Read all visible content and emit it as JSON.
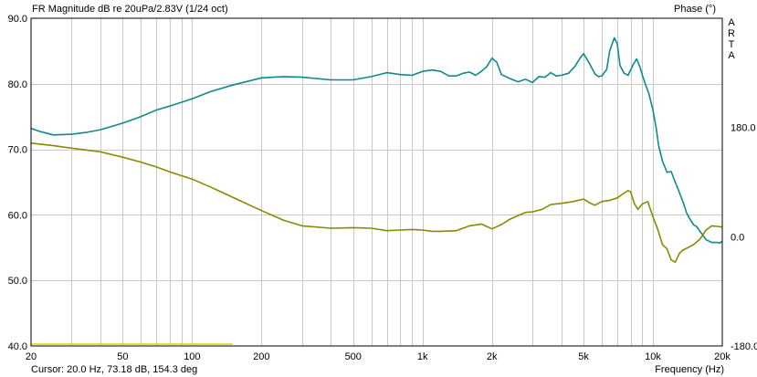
{
  "header": {
    "title": "FR Magnitude dB re 20uPa/2.83V (1/24 oct)",
    "right_title": "Phase (°)",
    "brand": "ARTA"
  },
  "footer": {
    "cursor": "Cursor: 20.0 Hz, 73.18 dB, 154.3 deg",
    "x_unit": "Frequency (Hz)"
  },
  "colors": {
    "magnitude": "#0f8a8c",
    "phase": "#8a8a00",
    "cursor_line": "#d8d800",
    "grid": "#c8c8c8",
    "frame": "#000000"
  },
  "chart_data": {
    "type": "line",
    "x_scale": "log",
    "xlim": [
      20,
      20000
    ],
    "ylim": [
      40,
      90
    ],
    "y2lim": [
      -180,
      360
    ],
    "x_ticks": [
      {
        "value": 20,
        "label": "20"
      },
      {
        "value": 50,
        "label": "50"
      },
      {
        "value": 100,
        "label": "100"
      },
      {
        "value": 200,
        "label": "200"
      },
      {
        "value": 500,
        "label": "500"
      },
      {
        "value": 1000,
        "label": "1k"
      },
      {
        "value": 2000,
        "label": "2k"
      },
      {
        "value": 5000,
        "label": "5k"
      },
      {
        "value": 10000,
        "label": "10k"
      },
      {
        "value": 20000,
        "label": "20k"
      }
    ],
    "y_ticks": [
      {
        "value": 90,
        "label": "90.0"
      },
      {
        "value": 80,
        "label": "80.0"
      },
      {
        "value": 70,
        "label": "70.0"
      },
      {
        "value": 60,
        "label": "60.0"
      },
      {
        "value": 50,
        "label": "50.0"
      },
      {
        "value": 40,
        "label": "40.0"
      }
    ],
    "y2_ticks": [
      {
        "value": 180,
        "label": "180.0"
      },
      {
        "value": 0,
        "label": "0.0"
      },
      {
        "value": -180,
        "label": "-180.0"
      }
    ],
    "cursor_x": [
      20,
      150
    ],
    "series": [
      {
        "key": "magnitude",
        "axis": "left",
        "x": [
          20,
          22,
          25,
          30,
          35,
          40,
          50,
          60,
          70,
          80,
          100,
          120,
          150,
          200,
          250,
          300,
          400,
          500,
          600,
          700,
          800,
          900,
          1000,
          1100,
          1200,
          1300,
          1400,
          1500,
          1600,
          1700,
          1800,
          1900,
          2000,
          2100,
          2200,
          2400,
          2600,
          2800,
          3000,
          3200,
          3400,
          3600,
          3800,
          4000,
          4300,
          4600,
          4800,
          5000,
          5300,
          5600,
          5800,
          6000,
          6300,
          6500,
          6800,
          7000,
          7200,
          7500,
          7800,
          8000,
          8200,
          8500,
          8800,
          9000,
          9300,
          9600,
          10000,
          10300,
          10600,
          11000,
          11500,
          12000,
          12500,
          13000,
          13500,
          14000,
          14500,
          15000,
          15500,
          16000,
          16500,
          17000,
          17500,
          18000,
          18500,
          19000,
          19500,
          20000
        ],
        "values": [
          73.2,
          72.7,
          72.2,
          72.3,
          72.6,
          73.0,
          74.0,
          75.0,
          76.0,
          76.6,
          77.7,
          78.8,
          79.8,
          80.9,
          81.1,
          81.0,
          80.6,
          80.6,
          81.1,
          81.7,
          81.4,
          81.3,
          81.9,
          82.1,
          81.9,
          81.2,
          81.2,
          81.6,
          81.8,
          81.3,
          81.9,
          82.6,
          83.9,
          83.3,
          81.4,
          80.8,
          80.3,
          80.7,
          80.2,
          81.1,
          81.0,
          81.7,
          81.2,
          81.3,
          81.6,
          82.7,
          83.8,
          84.6,
          83.1,
          81.5,
          81.1,
          81.2,
          82.2,
          85.1,
          87.0,
          86.1,
          82.8,
          81.6,
          81.3,
          82.1,
          82.9,
          83.8,
          82.5,
          81.3,
          79.8,
          78.5,
          76.0,
          73.5,
          70.5,
          68.2,
          66.5,
          66.6,
          65.0,
          63.5,
          62.0,
          60.3,
          59.3,
          58.5,
          58.2,
          57.5,
          56.9,
          56.2,
          56.0,
          55.8,
          55.8,
          55.8,
          55.7,
          56.0
        ]
      },
      {
        "key": "phase",
        "axis": "right",
        "x": [
          20,
          25,
          30,
          40,
          50,
          60,
          70,
          80,
          100,
          120,
          150,
          200,
          250,
          300,
          400,
          500,
          600,
          700,
          800,
          900,
          1000,
          1100,
          1200,
          1400,
          1600,
          1800,
          2000,
          2200,
          2400,
          2600,
          2800,
          3000,
          3300,
          3600,
          4000,
          4500,
          5000,
          5300,
          5600,
          6000,
          6500,
          7000,
          7500,
          7800,
          8000,
          8300,
          8600,
          9000,
          9500,
          10000,
          10500,
          11000,
          11500,
          12000,
          12500,
          13000,
          13500,
          14000,
          15000,
          16000,
          17000,
          18000,
          19000,
          20000
        ],
        "values": [
          154.3,
          150,
          146,
          140,
          131,
          123,
          115,
          107,
          95,
          82,
          65,
          43,
          27,
          18,
          14,
          15,
          14,
          10,
          11,
          12,
          11,
          9,
          9,
          10,
          18,
          21,
          13,
          20,
          29,
          35,
          40,
          41,
          45,
          53,
          55,
          58,
          62,
          56,
          52,
          58,
          60,
          64,
          72,
          76,
          74,
          55,
          45,
          54,
          58,
          33,
          12,
          -13,
          -20,
          -38,
          -42,
          -28,
          -22,
          -19,
          -13,
          -4,
          11,
          18,
          17,
          16
        ]
      }
    ]
  }
}
